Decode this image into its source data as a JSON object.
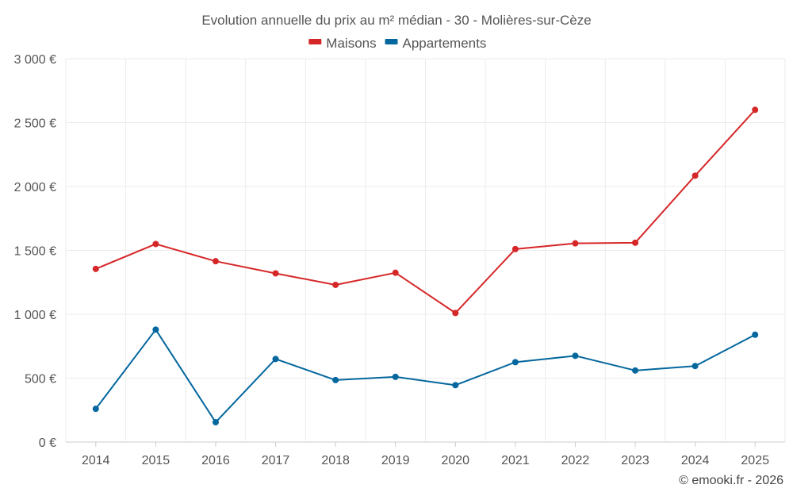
{
  "chart_data": {
    "type": "line",
    "title": "Evolution annuelle du prix au m² médian - 30 - Molières-sur-Cèze",
    "categories": [
      "2014",
      "2015",
      "2016",
      "2017",
      "2018",
      "2019",
      "2020",
      "2021",
      "2022",
      "2023",
      "2024",
      "2025"
    ],
    "series": [
      {
        "name": "Maisons",
        "color": "#d62728",
        "values": [
          1355,
          1550,
          1415,
          1320,
          1230,
          1325,
          1010,
          1510,
          1555,
          1560,
          2085,
          2600
        ]
      },
      {
        "name": "Appartements",
        "color": "#04679e",
        "values": [
          260,
          880,
          155,
          650,
          485,
          510,
          445,
          625,
          675,
          560,
          595,
          840
        ]
      }
    ],
    "ylim": [
      0,
      3000
    ],
    "yticks": [
      0,
      500,
      1000,
      1500,
      2000,
      2500,
      3000
    ],
    "ytick_labels": [
      "0 €",
      "500 €",
      "1 000 €",
      "1 500 €",
      "2 000 €",
      "2 500 €",
      "3 000 €"
    ],
    "xlabel": "",
    "ylabel": "",
    "legend": "top-center",
    "grid": true
  },
  "credit": "© emooki.fr - 2026"
}
